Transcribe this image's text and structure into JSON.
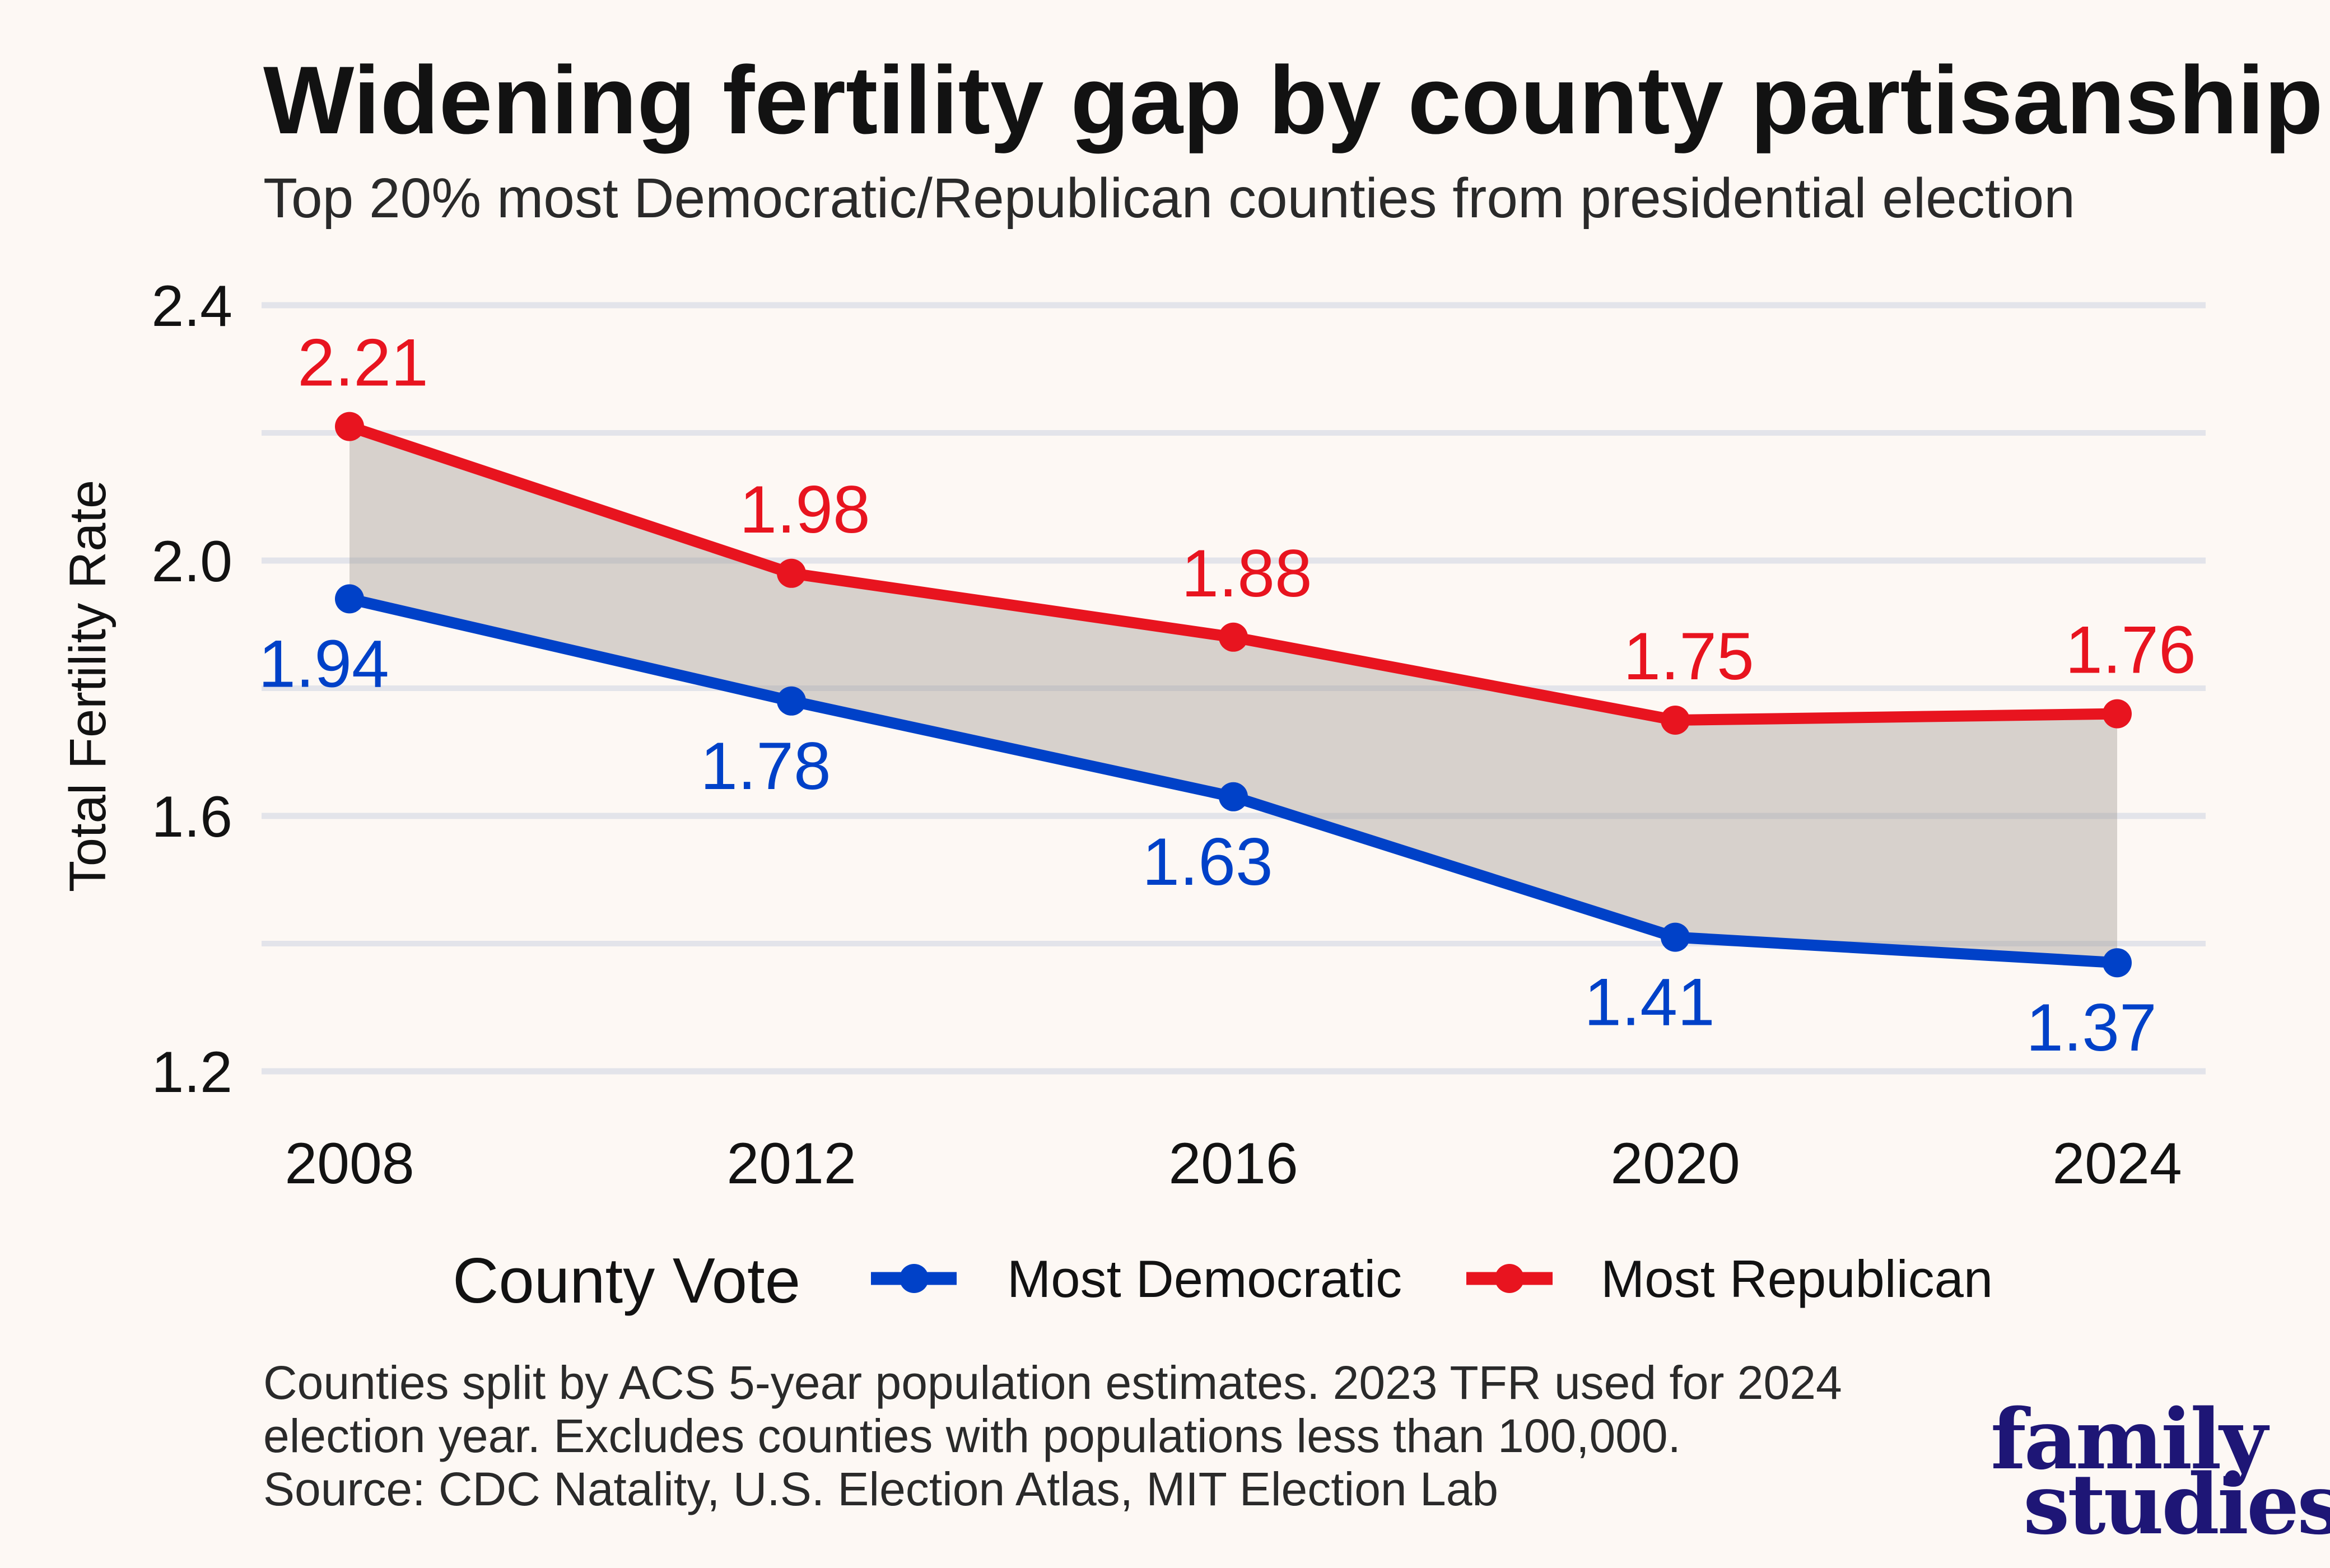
{
  "title": "Widening fertility gap by county partisanship",
  "subtitle": "Top 20% most Democratic/Republican counties from presidential election",
  "colors": {
    "background": "#FDF8F4",
    "democratic": "#0041C8",
    "republican": "#E8141F",
    "gap_fill": "#D5D0CC",
    "gridline": "#E3E4EA",
    "logo": "#1E1676"
  },
  "chart_data": {
    "type": "line",
    "title": "Widening fertility gap by county partisanship",
    "subtitle": "Top 20% most Democratic/Republican counties from presidential election",
    "xlabel": "",
    "ylabel": "Total Fertility Rate",
    "x": [
      2008,
      2012,
      2016,
      2020,
      2024
    ],
    "x_tick_labels": [
      "2008",
      "2012",
      "2016",
      "2020",
      "2024"
    ],
    "ylim": [
      1.2,
      2.4
    ],
    "y_ticks": [
      1.2,
      1.6,
      2.0,
      2.4
    ],
    "y_tick_labels": [
      "1.2",
      "1.6",
      "2.0",
      "2.4"
    ],
    "y_minor_gridlines": [
      1.4,
      1.8,
      2.2
    ],
    "grid": "horizontal",
    "shaded_gap_between_series": true,
    "series": [
      {
        "name": "Most Democratic",
        "key": "democratic",
        "color": "#0041C8",
        "values": [
          1.94,
          1.78,
          1.63,
          1.41,
          1.37
        ],
        "labels": [
          "1.94",
          "1.78",
          "1.63",
          "1.41",
          "1.37"
        ],
        "label_position": "below"
      },
      {
        "name": "Most Republican",
        "key": "republican",
        "color": "#E8141F",
        "values": [
          2.21,
          1.98,
          1.88,
          1.75,
          1.76
        ],
        "labels": [
          "2.21",
          "1.98",
          "1.88",
          "1.75",
          "1.76"
        ],
        "label_position": "above"
      }
    ],
    "legend": {
      "title": "County Vote",
      "placement": "bottom",
      "entries": [
        "Most Democratic",
        "Most Republican"
      ]
    }
  },
  "footnote": {
    "lines": [
      "Counties split by ACS 5-year population estimates. 2023 TFR used for 2024",
      "election year. Excludes counties with populations less than 100,000.",
      "Source: CDC Natality, U.S. Election Atlas, MIT Election Lab"
    ]
  },
  "logo": {
    "line1": "family",
    "line2": "studies"
  }
}
